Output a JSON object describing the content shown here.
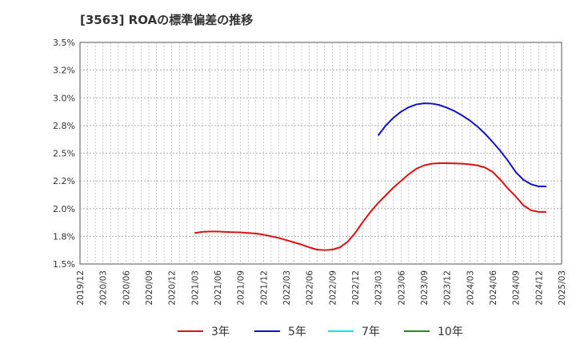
{
  "chart_data": {
    "type": "line",
    "title": "[3563]  ROAの標準偏差の推移",
    "xlabel": "",
    "ylabel": "",
    "ylim": [
      1.5,
      3.5
    ],
    "yticks": [
      "3.5%",
      "3.2%",
      "3.0%",
      "2.8%",
      "2.5%",
      "2.2%",
      "2.0%",
      "1.8%",
      "1.5%"
    ],
    "ytick_values": [
      3.5,
      3.25,
      3.0,
      2.75,
      2.5,
      2.25,
      2.0,
      1.75,
      1.5
    ],
    "x_categories": [
      "2019/12",
      "2020/03",
      "2020/06",
      "2020/09",
      "2020/12",
      "2021/03",
      "2021/06",
      "2021/09",
      "2021/12",
      "2022/03",
      "2022/06",
      "2022/09",
      "2022/12",
      "2023/03",
      "2023/06",
      "2023/09",
      "2023/12",
      "2024/03",
      "2024/06",
      "2024/09",
      "2024/12",
      "2025/03"
    ],
    "grid": true,
    "legend_position": "bottom",
    "series": [
      {
        "name": "3年",
        "color": "#dd1111",
        "points": [
          [
            "2021/03",
            1.78
          ],
          [
            "2021/04",
            1.79
          ],
          [
            "2021/05",
            1.793
          ],
          [
            "2021/06",
            1.793
          ],
          [
            "2021/07",
            1.79
          ],
          [
            "2021/08",
            1.787
          ],
          [
            "2021/09",
            1.785
          ],
          [
            "2021/10",
            1.78
          ],
          [
            "2021/11",
            1.775
          ],
          [
            "2021/12",
            1.765
          ],
          [
            "2022/01",
            1.75
          ],
          [
            "2022/02",
            1.735
          ],
          [
            "2022/03",
            1.715
          ],
          [
            "2022/04",
            1.695
          ],
          [
            "2022/05",
            1.675
          ],
          [
            "2022/06",
            1.65
          ],
          [
            "2022/07",
            1.63
          ],
          [
            "2022/08",
            1.625
          ],
          [
            "2022/09",
            1.63
          ],
          [
            "2022/10",
            1.65
          ],
          [
            "2022/11",
            1.7
          ],
          [
            "2022/12",
            1.78
          ],
          [
            "2023/01",
            1.88
          ],
          [
            "2023/02",
            1.97
          ],
          [
            "2023/03",
            2.05
          ],
          [
            "2023/04",
            2.12
          ],
          [
            "2023/05",
            2.19
          ],
          [
            "2023/06",
            2.25
          ],
          [
            "2023/07",
            2.31
          ],
          [
            "2023/08",
            2.36
          ],
          [
            "2023/09",
            2.39
          ],
          [
            "2023/10",
            2.405
          ],
          [
            "2023/11",
            2.41
          ],
          [
            "2023/12",
            2.41
          ],
          [
            "2024/01",
            2.408
          ],
          [
            "2024/02",
            2.405
          ],
          [
            "2024/03",
            2.4
          ],
          [
            "2024/04",
            2.39
          ],
          [
            "2024/05",
            2.37
          ],
          [
            "2024/06",
            2.33
          ],
          [
            "2024/07",
            2.26
          ],
          [
            "2024/08",
            2.18
          ],
          [
            "2024/09",
            2.11
          ],
          [
            "2024/10",
            2.03
          ],
          [
            "2024/11",
            1.985
          ],
          [
            "2024/12",
            1.97
          ],
          [
            "2025/01",
            1.97
          ]
        ]
      },
      {
        "name": "5年",
        "color": "#1111cc",
        "points": [
          [
            "2023/03",
            2.66
          ],
          [
            "2023/04",
            2.75
          ],
          [
            "2023/05",
            2.82
          ],
          [
            "2023/06",
            2.875
          ],
          [
            "2023/07",
            2.915
          ],
          [
            "2023/08",
            2.94
          ],
          [
            "2023/09",
            2.95
          ],
          [
            "2023/10",
            2.948
          ],
          [
            "2023/11",
            2.935
          ],
          [
            "2023/12",
            2.91
          ],
          [
            "2024/01",
            2.88
          ],
          [
            "2024/02",
            2.84
          ],
          [
            "2024/03",
            2.795
          ],
          [
            "2024/04",
            2.74
          ],
          [
            "2024/05",
            2.675
          ],
          [
            "2024/06",
            2.6
          ],
          [
            "2024/07",
            2.52
          ],
          [
            "2024/08",
            2.43
          ],
          [
            "2024/09",
            2.33
          ],
          [
            "2024/10",
            2.26
          ],
          [
            "2024/11",
            2.22
          ],
          [
            "2024/12",
            2.2
          ],
          [
            "2025/01",
            2.2
          ]
        ]
      },
      {
        "name": "7年",
        "color": "#00e5ee",
        "points": []
      },
      {
        "name": "10年",
        "color": "#228b22",
        "points": []
      }
    ]
  }
}
